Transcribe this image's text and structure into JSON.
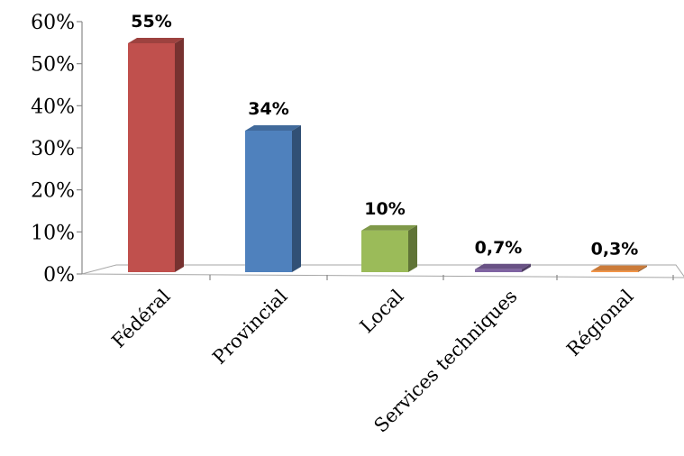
{
  "chart_data": {
    "type": "bar",
    "categories": [
      "Fédéral",
      "Provincial",
      "Local",
      "Services techniques",
      "Régional"
    ],
    "values": [
      55,
      34,
      10,
      0.7,
      0.3
    ],
    "data_labels": [
      "55%",
      "34%",
      "10%",
      "0,7%",
      "0,3%"
    ],
    "colors": [
      "#c0504d",
      "#4f81bd",
      "#9bbb59",
      "#8064a2",
      "#f79646"
    ],
    "y_ticks": [
      0,
      10,
      20,
      30,
      40,
      50,
      60
    ],
    "y_tick_labels": [
      "0%",
      "10%",
      "20%",
      "30%",
      "40%",
      "50%",
      "60%"
    ],
    "ylim": [
      0,
      60
    ],
    "title": "",
    "xlabel": "",
    "ylabel": "",
    "grid": false,
    "legend": "none"
  }
}
